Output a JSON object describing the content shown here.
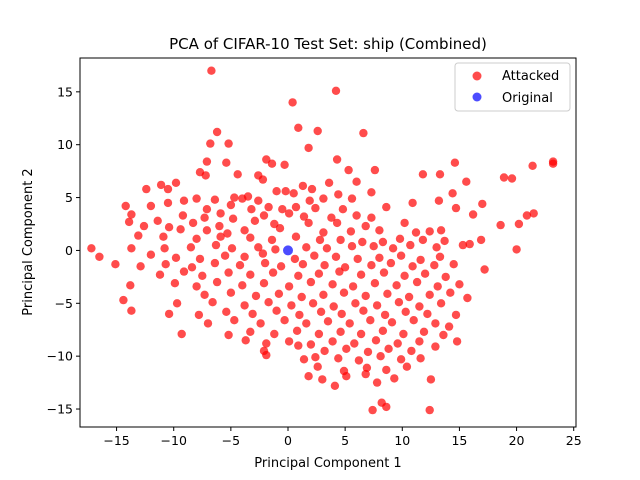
{
  "chart_data": {
    "type": "scatter",
    "title": "PCA of CIFAR-10 Test Set: ship (Combined)",
    "xlabel": "Principal Component 1",
    "ylabel": "Principal Component 2",
    "xlim": [
      -18.2,
      25.2
    ],
    "ylim": [
      -16.7,
      18.2
    ],
    "xticks": [
      -15,
      -10,
      -5,
      0,
      5,
      10,
      15,
      20,
      25
    ],
    "yticks": [
      -15,
      -10,
      -5,
      0,
      5,
      10,
      15
    ],
    "grid": false,
    "legend_position": "top-right",
    "series": [
      {
        "name": "Attacked",
        "color": "#ff0000",
        "points": [
          [
            -6.7,
            17.0
          ],
          [
            0.4,
            14.0
          ],
          [
            4.2,
            15.1
          ],
          [
            -6.2,
            11.2
          ],
          [
            6.6,
            11.1
          ],
          [
            -6.8,
            10.1
          ],
          [
            -5.2,
            10.1
          ],
          [
            0.9,
            11.6
          ],
          [
            2.6,
            11.3
          ],
          [
            1.8,
            9.7
          ],
          [
            -7.1,
            8.4
          ],
          [
            -1.9,
            8.6
          ],
          [
            -1.4,
            8.2
          ],
          [
            -0.3,
            8.1
          ],
          [
            4.3,
            8.6
          ],
          [
            14.6,
            8.3
          ],
          [
            23.2,
            8.4
          ],
          [
            23.2,
            8.2
          ],
          [
            21.4,
            8.0
          ],
          [
            -5.4,
            8.3
          ],
          [
            -4.4,
            7.2
          ],
          [
            -7.7,
            7.4
          ],
          [
            -7.2,
            7.1
          ],
          [
            5.3,
            7.6
          ],
          [
            7.6,
            7.6
          ],
          [
            11.8,
            7.2
          ],
          [
            13.3,
            7.2
          ],
          [
            18.9,
            6.9
          ],
          [
            19.6,
            6.8
          ],
          [
            -9.8,
            6.4
          ],
          [
            -11.1,
            6.2
          ],
          [
            -10.5,
            5.8
          ],
          [
            -12.4,
            5.8
          ],
          [
            -2.6,
            7.1
          ],
          [
            -2.2,
            6.7
          ],
          [
            1.3,
            6.1
          ],
          [
            3.6,
            6.4
          ],
          [
            6.0,
            6.5
          ],
          [
            15.6,
            6.5
          ],
          [
            -4.7,
            5.0
          ],
          [
            -3.5,
            5.1
          ],
          [
            -1.0,
            5.6
          ],
          [
            -0.2,
            5.6
          ],
          [
            0.5,
            5.4
          ],
          [
            2.1,
            5.8
          ],
          [
            4.4,
            5.3
          ],
          [
            7.3,
            5.5
          ],
          [
            14.4,
            5.4
          ],
          [
            -9.1,
            4.7
          ],
          [
            -10.5,
            4.5
          ],
          [
            -6.4,
            4.8
          ],
          [
            -8.0,
            4.9
          ],
          [
            -4.0,
            4.9
          ],
          [
            -2.6,
            4.7
          ],
          [
            -5.0,
            4.3
          ],
          [
            1.9,
            4.7
          ],
          [
            3.1,
            4.9
          ],
          [
            5.6,
            4.9
          ],
          [
            10.9,
            4.5
          ],
          [
            13.2,
            4.7
          ],
          [
            17.0,
            4.4
          ],
          [
            -14.2,
            4.2
          ],
          [
            -12.0,
            4.2
          ],
          [
            -7.1,
            3.9
          ],
          [
            -5.9,
            3.5
          ],
          [
            -3.2,
            3.9
          ],
          [
            -1.7,
            4.1
          ],
          [
            -0.5,
            3.9
          ],
          [
            0.7,
            4.1
          ],
          [
            2.4,
            4.0
          ],
          [
            4.8,
            3.9
          ],
          [
            8.6,
            4.1
          ],
          [
            14.7,
            4.0
          ],
          [
            -13.7,
            3.4
          ],
          [
            -9.2,
            3.3
          ],
          [
            -7.3,
            3.1
          ],
          [
            -4.8,
            3.0
          ],
          [
            -2.1,
            3.3
          ],
          [
            0.1,
            3.5
          ],
          [
            1.4,
            3.2
          ],
          [
            3.8,
            3.1
          ],
          [
            6.0,
            3.3
          ],
          [
            7.3,
            3.1
          ],
          [
            16.2,
            3.4
          ],
          [
            21.5,
            3.5
          ],
          [
            20.9,
            3.3
          ],
          [
            -13.9,
            2.7
          ],
          [
            -11.4,
            2.8
          ],
          [
            -8.3,
            2.6
          ],
          [
            -6.0,
            2.3
          ],
          [
            -2.9,
            2.8
          ],
          [
            -1.2,
            2.5
          ],
          [
            1.8,
            2.6
          ],
          [
            4.3,
            2.6
          ],
          [
            6.8,
            2.3
          ],
          [
            10.2,
            2.6
          ],
          [
            18.6,
            2.4
          ],
          [
            20.2,
            2.5
          ],
          [
            -12.6,
            2.3
          ],
          [
            -10.4,
            2.2
          ],
          [
            -9.4,
            2.0
          ],
          [
            -7.1,
            1.9
          ],
          [
            -5.3,
            1.6
          ],
          [
            -3.8,
            1.9
          ],
          [
            -0.7,
            2.1
          ],
          [
            3.1,
            1.7
          ],
          [
            5.5,
            1.8
          ],
          [
            8.0,
            1.9
          ],
          [
            11.2,
            1.7
          ],
          [
            12.4,
            1.8
          ],
          [
            13.4,
            1.9
          ],
          [
            -13.1,
            1.4
          ],
          [
            -10.9,
            1.3
          ],
          [
            -8.0,
            1.1
          ],
          [
            -5.9,
            1.3
          ],
          [
            -3.3,
            1.2
          ],
          [
            -1.4,
            1.0
          ],
          [
            0.7,
            1.3
          ],
          [
            2.8,
            1.0
          ],
          [
            4.6,
            1.0
          ],
          [
            6.5,
            0.8
          ],
          [
            8.3,
            0.8
          ],
          [
            9.8,
            1.1
          ],
          [
            11.8,
            1.0
          ],
          [
            13.7,
            0.9
          ],
          [
            16.9,
            1.0
          ],
          [
            -17.2,
            0.2
          ],
          [
            -13.7,
            0.2
          ],
          [
            -10.8,
            0.2
          ],
          [
            -8.5,
            0.3
          ],
          [
            -6.3,
            0.5
          ],
          [
            -4.9,
            0.2
          ],
          [
            -2.6,
            0.3
          ],
          [
            -1.1,
            0.1
          ],
          [
            1.6,
            0.3
          ],
          [
            3.4,
            0.2
          ],
          [
            5.6,
            0.4
          ],
          [
            7.5,
            0.4
          ],
          [
            9.2,
            0.2
          ],
          [
            10.7,
            0.5
          ],
          [
            13.0,
            0.3
          ],
          [
            15.3,
            0.5
          ],
          [
            15.9,
            0.6
          ],
          [
            20.0,
            0.1
          ],
          [
            -16.5,
            -0.6
          ],
          [
            -12.0,
            -0.4
          ],
          [
            -9.8,
            -0.7
          ],
          [
            -7.7,
            -0.8
          ],
          [
            -5.5,
            -0.5
          ],
          [
            -3.8,
            -0.6
          ],
          [
            -2.2,
            -0.3
          ],
          [
            0.6,
            -0.8
          ],
          [
            2.3,
            -0.5
          ],
          [
            4.2,
            -0.6
          ],
          [
            6.1,
            -0.8
          ],
          [
            8.0,
            -0.7
          ],
          [
            9.9,
            -0.5
          ],
          [
            11.6,
            -0.9
          ],
          [
            13.3,
            -0.6
          ],
          [
            -15.1,
            -1.3
          ],
          [
            -12.9,
            -1.5
          ],
          [
            -10.7,
            -1.3
          ],
          [
            -8.4,
            -1.6
          ],
          [
            -6.4,
            -1.2
          ],
          [
            -4.2,
            -1.4
          ],
          [
            -2.0,
            -1.2
          ],
          [
            -0.6,
            -1.5
          ],
          [
            1.3,
            -1.3
          ],
          [
            3.2,
            -1.4
          ],
          [
            5.0,
            -1.6
          ],
          [
            7.3,
            -1.4
          ],
          [
            9.0,
            -1.2
          ],
          [
            10.9,
            -1.5
          ],
          [
            12.8,
            -1.4
          ],
          [
            14.5,
            -1.3
          ],
          [
            17.2,
            -1.8
          ],
          [
            -11.2,
            -2.3
          ],
          [
            -9.1,
            -2.0
          ],
          [
            -7.5,
            -2.4
          ],
          [
            -5.2,
            -2.1
          ],
          [
            -3.3,
            -2.3
          ],
          [
            -1.3,
            -2.1
          ],
          [
            0.9,
            -2.4
          ],
          [
            2.7,
            -2.2
          ],
          [
            4.5,
            -2.0
          ],
          [
            6.4,
            -2.3
          ],
          [
            8.4,
            -2.1
          ],
          [
            10.2,
            -2.4
          ],
          [
            12.0,
            -2.2
          ],
          [
            13.8,
            -2.5
          ],
          [
            -13.8,
            -3.3
          ],
          [
            -9.9,
            -3.1
          ],
          [
            -8.0,
            -3.4
          ],
          [
            -6.2,
            -3.0
          ],
          [
            -4.0,
            -3.3
          ],
          [
            -2.1,
            -3.1
          ],
          [
            0.1,
            -3.4
          ],
          [
            2.0,
            -3.0
          ],
          [
            3.9,
            -3.2
          ],
          [
            5.7,
            -3.4
          ],
          [
            7.6,
            -3.1
          ],
          [
            9.5,
            -3.3
          ],
          [
            11.3,
            -3.0
          ],
          [
            13.1,
            -3.4
          ],
          [
            15.0,
            -3.2
          ],
          [
            -7.3,
            -4.2
          ],
          [
            -5.0,
            -4.0
          ],
          [
            -2.8,
            -4.3
          ],
          [
            -0.8,
            -4.1
          ],
          [
            1.2,
            -4.4
          ],
          [
            3.1,
            -4.2
          ],
          [
            4.9,
            -4.0
          ],
          [
            6.8,
            -4.3
          ],
          [
            8.7,
            -4.1
          ],
          [
            10.6,
            -4.4
          ],
          [
            12.4,
            -4.2
          ],
          [
            14.2,
            -4.0
          ],
          [
            15.7,
            -4.5
          ],
          [
            -14.4,
            -4.7
          ],
          [
            -9.7,
            -5.0
          ],
          [
            -6.6,
            -4.9
          ],
          [
            -3.8,
            -5.2
          ],
          [
            -1.7,
            -4.9
          ],
          [
            0.3,
            -5.2
          ],
          [
            2.2,
            -5.0
          ],
          [
            4.0,
            -5.3
          ],
          [
            5.9,
            -5.0
          ],
          [
            7.8,
            -5.2
          ],
          [
            9.7,
            -4.9
          ],
          [
            11.5,
            -5.3
          ],
          [
            13.4,
            -5.0
          ],
          [
            -13.7,
            -5.7
          ],
          [
            -7.8,
            -6.1
          ],
          [
            -5.4,
            -5.8
          ],
          [
            -3.1,
            -6.0
          ],
          [
            -1.0,
            -5.7
          ],
          [
            1.0,
            -6.1
          ],
          [
            2.9,
            -5.8
          ],
          [
            4.7,
            -6.0
          ],
          [
            6.6,
            -5.7
          ],
          [
            8.5,
            -6.1
          ],
          [
            10.3,
            -5.8
          ],
          [
            12.2,
            -6.0
          ],
          [
            14.7,
            -6.1
          ],
          [
            -10.4,
            -6.0
          ],
          [
            -7.0,
            -6.9
          ],
          [
            -4.7,
            -6.6
          ],
          [
            -2.4,
            -6.9
          ],
          [
            -0.3,
            -6.6
          ],
          [
            1.6,
            -6.9
          ],
          [
            3.5,
            -6.7
          ],
          [
            5.4,
            -6.9
          ],
          [
            7.2,
            -6.6
          ],
          [
            9.1,
            -6.8
          ],
          [
            11.0,
            -6.6
          ],
          [
            12.9,
            -6.9
          ],
          [
            14.1,
            -7.2
          ],
          [
            -9.3,
            -7.9
          ],
          [
            -5.2,
            -8.0
          ],
          [
            -3.3,
            -7.7
          ],
          [
            -1.2,
            -7.9
          ],
          [
            0.8,
            -7.6
          ],
          [
            2.7,
            -7.9
          ],
          [
            4.6,
            -7.7
          ],
          [
            6.4,
            -7.9
          ],
          [
            8.3,
            -7.6
          ],
          [
            10.1,
            -7.9
          ],
          [
            11.9,
            -7.7
          ],
          [
            13.6,
            -8.0
          ],
          [
            -3.7,
            -8.5
          ],
          [
            -1.9,
            -8.8
          ],
          [
            0.1,
            -8.6
          ],
          [
            2.0,
            -8.9
          ],
          [
            3.9,
            -8.6
          ],
          [
            5.8,
            -8.8
          ],
          [
            7.7,
            -8.5
          ],
          [
            9.6,
            -8.8
          ],
          [
            11.5,
            -8.6
          ],
          [
            14.8,
            -8.6
          ],
          [
            -2.1,
            -9.5
          ],
          [
            0.9,
            -9.0
          ],
          [
            3.2,
            -9.5
          ],
          [
            5.1,
            -9.3
          ],
          [
            7.0,
            -9.6
          ],
          [
            8.8,
            -9.3
          ],
          [
            10.8,
            -9.5
          ],
          [
            12.9,
            -9.1
          ],
          [
            -1.9,
            -9.9
          ],
          [
            1.4,
            -10.3
          ],
          [
            2.4,
            -10.1
          ],
          [
            4.4,
            -10.2
          ],
          [
            6.2,
            -10.4
          ],
          [
            8.1,
            -10.0
          ],
          [
            9.9,
            -10.3
          ],
          [
            11.6,
            -10.2
          ],
          [
            2.6,
            -11.0
          ],
          [
            4.9,
            -11.4
          ],
          [
            6.9,
            -11.1
          ],
          [
            8.6,
            -11.3
          ],
          [
            10.4,
            -11.0
          ],
          [
            1.8,
            -11.9
          ],
          [
            3.0,
            -12.2
          ],
          [
            5.1,
            -11.9
          ],
          [
            6.8,
            -11.7
          ],
          [
            9.3,
            -12.1
          ],
          [
            12.5,
            -12.2
          ],
          [
            4.1,
            -12.8
          ],
          [
            7.8,
            -12.5
          ],
          [
            8.2,
            -14.4
          ],
          [
            8.6,
            -14.8
          ],
          [
            7.4,
            -15.1
          ],
          [
            12.4,
            -15.1
          ]
        ]
      },
      {
        "name": "Original",
        "color": "#0000ff",
        "points": [
          [
            0.0,
            0.0
          ]
        ]
      }
    ]
  }
}
